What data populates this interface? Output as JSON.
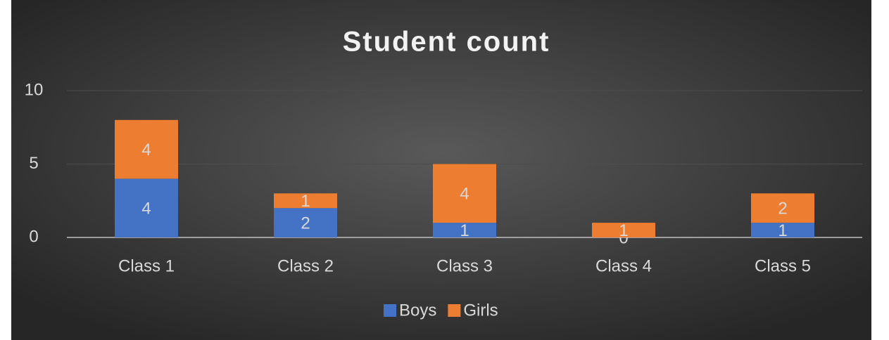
{
  "chart_data": {
    "type": "bar",
    "stacked": true,
    "title": "Student count",
    "categories": [
      "Class 1",
      "Class 2",
      "Class 3",
      "Class 4",
      "Class 5"
    ],
    "series": [
      {
        "name": "Boys",
        "color": "#4472c4",
        "values": [
          4,
          2,
          1,
          0,
          1
        ]
      },
      {
        "name": "Girls",
        "color": "#ed7d31",
        "values": [
          4,
          1,
          4,
          1,
          2
        ]
      }
    ],
    "ylim": [
      0,
      10
    ],
    "yticks": [
      0,
      5,
      10
    ],
    "grid": true,
    "legend": "bottom"
  }
}
